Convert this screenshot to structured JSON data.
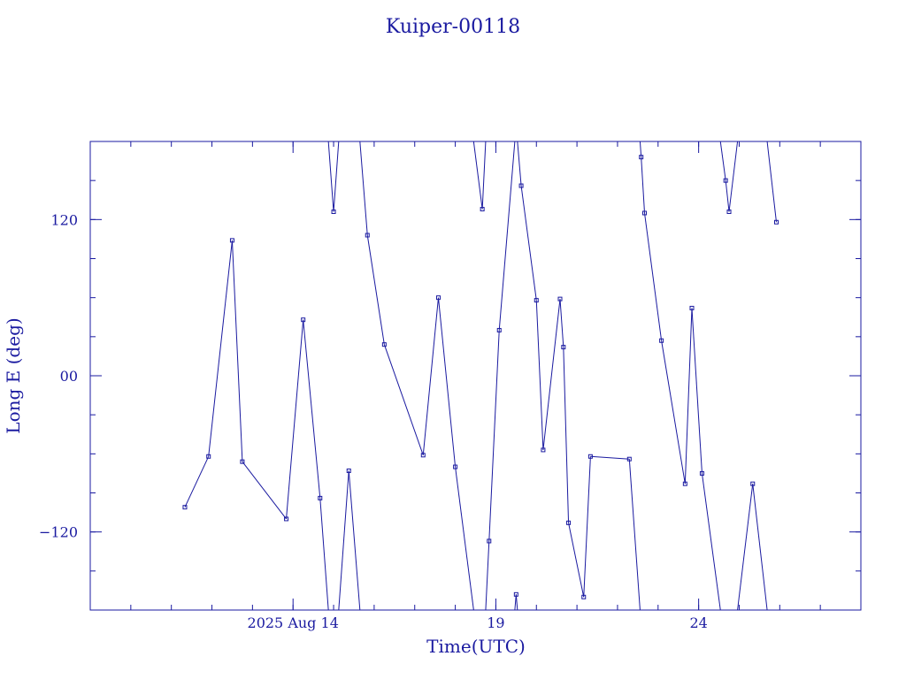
{
  "chart_data": {
    "type": "line",
    "title": "Kuiper-00118",
    "xlabel": "Time(UTC)",
    "ylabel": "Long E (deg)",
    "xlim": [
      "2025-08-09T00:00Z",
      "2025-08-28T00:00Z"
    ],
    "ylim": [
      -180,
      180
    ],
    "x_major_ticks": [
      {
        "t": "2025-08-14T00:00Z",
        "label": "2025 Aug 14"
      },
      {
        "t": "2025-08-19T00:00Z",
        "label": "19"
      },
      {
        "t": "2025-08-24T00:00Z",
        "label": "24"
      }
    ],
    "x_minor_tick_step_days": 1,
    "y_major_ticks": [
      {
        "value": -120,
        "label": "−120"
      },
      {
        "value": 0,
        "label": "00"
      },
      {
        "value": 120,
        "label": "120"
      }
    ],
    "y_minor_tick_step": 30,
    "series_color": "#1a1aa0",
    "points": [
      {
        "t": "2025-08-11T08:00Z",
        "lon": -101
      },
      {
        "t": "2025-08-11T22:00Z",
        "lon": -62
      },
      {
        "t": "2025-08-12T12:00Z",
        "lon": 104
      },
      {
        "t": "2025-08-12T18:00Z",
        "lon": -66
      },
      {
        "t": "2025-08-13T20:00Z",
        "lon": -110
      },
      {
        "t": "2025-08-14T06:00Z",
        "lon": 43
      },
      {
        "t": "2025-08-14T16:00Z",
        "lon": -94
      },
      {
        "t": "2025-08-15T00:00Z",
        "lon": 126
      },
      {
        "t": "2025-08-15T09:00Z",
        "lon": -73
      },
      {
        "t": "2025-08-15T20:00Z",
        "lon": 108
      },
      {
        "t": "2025-08-16T06:00Z",
        "lon": 24
      },
      {
        "t": "2025-08-17T05:00Z",
        "lon": -61
      },
      {
        "t": "2025-08-17T14:00Z",
        "lon": 60
      },
      {
        "t": "2025-08-18T00:00Z",
        "lon": -70
      },
      {
        "t": "2025-08-18T16:00Z",
        "lon": 128
      },
      {
        "t": "2025-08-18T20:00Z",
        "lon": -127
      },
      {
        "t": "2025-08-19T02:00Z",
        "lon": 35
      },
      {
        "t": "2025-08-19T12:00Z",
        "lon": -168
      },
      {
        "t": "2025-08-19T15:00Z",
        "lon": 146
      },
      {
        "t": "2025-08-20T00:00Z",
        "lon": 58
      },
      {
        "t": "2025-08-20T04:00Z",
        "lon": -57
      },
      {
        "t": "2025-08-20T14:00Z",
        "lon": 59
      },
      {
        "t": "2025-08-20T16:00Z",
        "lon": 22
      },
      {
        "t": "2025-08-20T19:00Z",
        "lon": -113
      },
      {
        "t": "2025-08-21T04:00Z",
        "lon": -170
      },
      {
        "t": "2025-08-21T08:00Z",
        "lon": -62
      },
      {
        "t": "2025-08-22T07:00Z",
        "lon": -64
      },
      {
        "t": "2025-08-22T14:00Z",
        "lon": 168
      },
      {
        "t": "2025-08-22T16:00Z",
        "lon": 125
      },
      {
        "t": "2025-08-23T02:00Z",
        "lon": 27
      },
      {
        "t": "2025-08-23T16:00Z",
        "lon": -83
      },
      {
        "t": "2025-08-23T20:00Z",
        "lon": 52
      },
      {
        "t": "2025-08-24T02:00Z",
        "lon": -75
      },
      {
        "t": "2025-08-24T16:00Z",
        "lon": 150
      },
      {
        "t": "2025-08-24T18:00Z",
        "lon": 126
      },
      {
        "t": "2025-08-25T08:00Z",
        "lon": -83
      },
      {
        "t": "2025-08-25T22:00Z",
        "lon": 118
      }
    ]
  }
}
